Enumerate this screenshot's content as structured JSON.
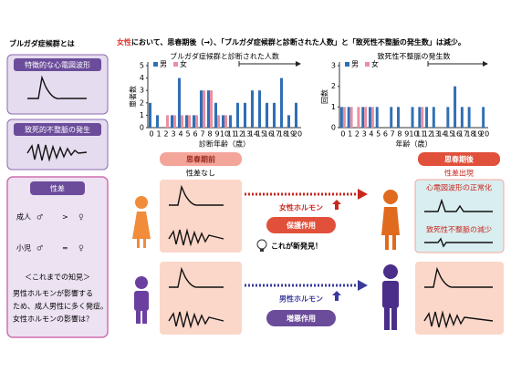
{
  "headline": {
    "highlight": "女性",
    "rest": "において、思春期後（→）、「ブルガダ症候群と診断された人数」と「致死性不整脈の発生数」は減少。"
  },
  "left": {
    "title": "ブルガダ症候群とは",
    "ecg_box": "特徴的な心電図波形",
    "arrhythmia_box": "致死的不整脈の発生",
    "sex_box": {
      "title": "性差",
      "adult": "成人",
      "child": "小児",
      "male": "♂",
      "female": "♀",
      "gt": ">",
      "eq": "=",
      "knowledge_title": "＜これまでの知見＞",
      "knowledge": [
        "男性ホルモンが影響する",
        "ため、成人男性に多く発症。",
        "女性ホルモンの影響は？"
      ]
    }
  },
  "chart_data": [
    {
      "type": "bar",
      "title": "ブルガダ症候群と診断された人数",
      "y_label": "患者数",
      "x_label": "診断年齢（歳）",
      "categories": [
        "0",
        "1",
        "2",
        "3",
        "4",
        "5",
        "6",
        "7",
        "8",
        "9",
        "10",
        "11",
        "12",
        "13",
        "14",
        "15",
        "16",
        "17",
        "18",
        "19",
        "20"
      ],
      "series": [
        {
          "name": "男",
          "color": "#2f6fb5",
          "values": [
            2,
            1,
            0,
            1,
            4,
            1,
            1,
            3,
            3,
            2,
            1,
            1,
            2,
            2,
            3,
            3,
            2,
            2,
            4,
            1,
            2
          ]
        },
        {
          "name": "女",
          "color": "#e98fa3",
          "values": [
            0,
            0,
            1,
            1,
            1,
            1,
            1,
            3,
            3,
            1,
            1,
            0,
            0,
            0,
            0,
            0,
            0,
            0,
            0,
            0,
            0
          ]
        }
      ],
      "ylim": [
        0,
        5
      ],
      "yticks": [
        0,
        1,
        2,
        3,
        4,
        5
      ],
      "legend": "top-left"
    },
    {
      "type": "bar",
      "title": "致死性不整脈の発生数",
      "y_label": "回数",
      "x_label": "年齢（歳）",
      "categories": [
        "0",
        "1",
        "2",
        "3",
        "4",
        "5",
        "6",
        "7",
        "8",
        "9",
        "10",
        "11",
        "12",
        "13",
        "14",
        "15",
        "16",
        "17",
        "18",
        "19",
        "20"
      ],
      "series": [
        {
          "name": "男",
          "color": "#2f6fb5",
          "values": [
            1,
            1,
            0,
            1,
            1,
            1,
            0,
            1,
            1,
            0,
            1,
            1,
            1,
            1,
            0,
            1,
            2,
            1,
            1,
            0,
            1
          ]
        },
        {
          "name": "女",
          "color": "#e98fa3",
          "values": [
            1,
            1,
            1,
            1,
            1,
            0,
            0,
            0,
            0,
            0,
            0,
            1,
            0,
            0,
            0,
            0,
            0,
            0,
            0,
            0,
            0
          ]
        }
      ],
      "ylim": [
        0,
        3
      ],
      "yticks": [
        0,
        1,
        2,
        3
      ],
      "legend": "top-left"
    }
  ],
  "bottom": {
    "before": "思春期前",
    "no_diff": "性差なし",
    "after": "思春期後",
    "diff": "性差出現",
    "female_hormone": "女性ホルモン",
    "male_hormone": "男性ホルモン",
    "protective": "保護作用",
    "aggravating": "増悪作用",
    "discovery": "これが新発見！",
    "ecg_normal": "心電図波形の正常化",
    "arrhythmia_decrease": "致死性不整脈の減少"
  }
}
